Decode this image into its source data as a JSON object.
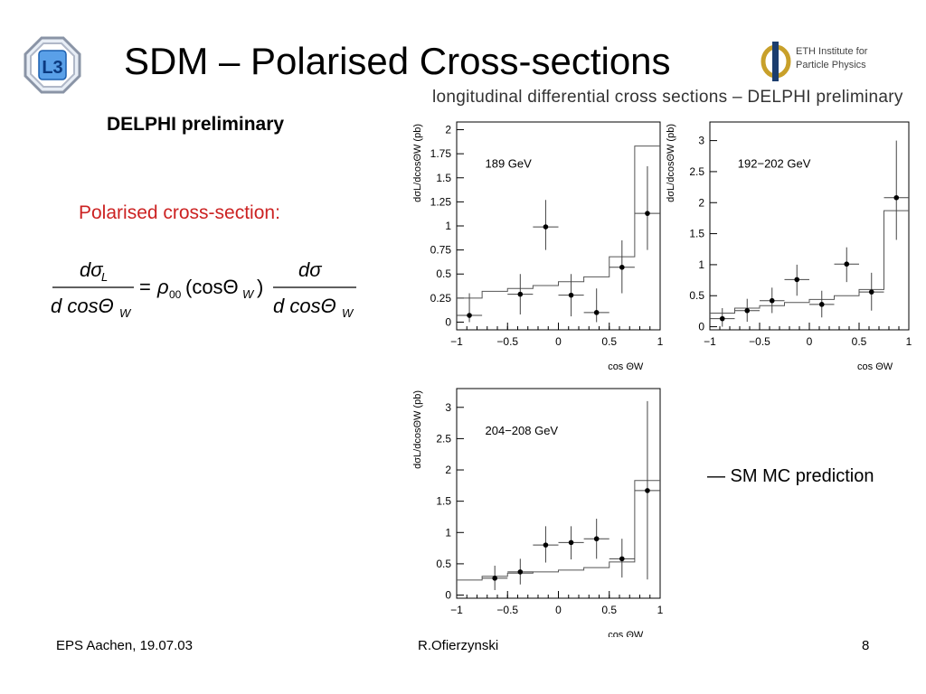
{
  "slide": {
    "title": "SDM – Polarised Cross-sections",
    "subtitle": "DELPHI preliminary",
    "polarised_label": "Polarised cross-section:",
    "plots_title": "longitudinal differential cross sections – DELPHI preliminary",
    "legend_text": "— SM MC prediction",
    "eth_text_line1": "ETH Institute for",
    "eth_text_line2": "Particle Physics",
    "l3_logo_text": "L3"
  },
  "equation": {
    "lhs_num": "dσ",
    "lhs_num_sub": "L",
    "lhs_den": "d cosΘ",
    "lhs_den_sub": "W",
    "equals": "=",
    "rho": "ρ",
    "rho_sub": "00",
    "arg": "(cosΘ",
    "arg_sub": "W",
    "arg_close": ")",
    "rhs_num": "dσ",
    "rhs_den": "d cosΘ",
    "rhs_den_sub": "W"
  },
  "footer": {
    "left": "EPS Aachen, 19.07.03",
    "center": "R.Ofierzynski",
    "right": "8"
  },
  "colors": {
    "title": "#000000",
    "polarised_label": "#cc2222",
    "axis": "#000000",
    "mc_line": "#555555"
  },
  "chart_data": [
    {
      "type": "scatter",
      "label": "189 GeV",
      "ylabel": "dσL/dcosΘW (pb)",
      "xlabel": "cos ΘW",
      "xlim": [
        -1,
        1
      ],
      "ylim": [
        -0.08,
        2.08
      ],
      "xticks": [
        -1,
        -0.5,
        0,
        0.5,
        1
      ],
      "xtick_labels": [
        "−1",
        "−0.5",
        "0",
        "0.5",
        "1"
      ],
      "yticks": [
        0,
        0.25,
        0.5,
        0.75,
        1,
        1.25,
        1.5,
        1.75,
        2
      ],
      "ytick_labels": [
        "0",
        "0.25",
        "0.5",
        "0.75",
        "1",
        "1.25",
        "1.5",
        "1.75",
        "2"
      ],
      "points": [
        {
          "x": -0.875,
          "y": 0.07,
          "ylo": 0.0,
          "yhi": 0.3
        },
        {
          "x": -0.375,
          "y": 0.29,
          "ylo": 0.08,
          "yhi": 0.5
        },
        {
          "x": -0.125,
          "y": 0.99,
          "ylo": 0.75,
          "yhi": 1.27
        },
        {
          "x": 0.125,
          "y": 0.28,
          "ylo": 0.06,
          "yhi": 0.5
        },
        {
          "x": 0.375,
          "y": 0.1,
          "ylo": 0.0,
          "yhi": 0.35
        },
        {
          "x": 0.625,
          "y": 0.57,
          "ylo": 0.3,
          "yhi": 0.85
        },
        {
          "x": 0.875,
          "y": 1.13,
          "ylo": 0.75,
          "yhi": 1.62
        }
      ],
      "mc_edges": [
        -1,
        -0.75,
        -0.5,
        -0.25,
        0,
        0.25,
        0.5,
        0.75,
        1
      ],
      "mc_values": [
        0.25,
        0.32,
        0.35,
        0.38,
        0.42,
        0.47,
        0.68,
        1.83
      ]
    },
    {
      "type": "scatter",
      "label": "192−202 GeV",
      "ylabel": "dσL/dcosΘW (pb)",
      "xlabel": "cos ΘW",
      "xlim": [
        -1,
        1
      ],
      "ylim": [
        -0.05,
        3.3
      ],
      "xticks": [
        -1,
        -0.5,
        0,
        0.5,
        1
      ],
      "xtick_labels": [
        "−1",
        "−0.5",
        "0",
        "0.5",
        "1"
      ],
      "yticks": [
        0,
        0.5,
        1,
        1.5,
        2,
        2.5,
        3
      ],
      "ytick_labels": [
        "0",
        "0.5",
        "1",
        "1.5",
        "2",
        "2.5",
        "3"
      ],
      "points": [
        {
          "x": -0.875,
          "y": 0.13,
          "ylo": 0.0,
          "yhi": 0.3
        },
        {
          "x": -0.625,
          "y": 0.26,
          "ylo": 0.08,
          "yhi": 0.45
        },
        {
          "x": -0.375,
          "y": 0.42,
          "ylo": 0.22,
          "yhi": 0.63
        },
        {
          "x": -0.125,
          "y": 0.76,
          "ylo": 0.5,
          "yhi": 1.0
        },
        {
          "x": 0.125,
          "y": 0.36,
          "ylo": 0.15,
          "yhi": 0.58
        },
        {
          "x": 0.375,
          "y": 1.01,
          "ylo": 0.72,
          "yhi": 1.28
        },
        {
          "x": 0.625,
          "y": 0.56,
          "ylo": 0.26,
          "yhi": 0.87
        },
        {
          "x": 0.875,
          "y": 2.08,
          "ylo": 1.4,
          "yhi": 3.0
        }
      ],
      "mc_edges": [
        -1,
        -0.75,
        -0.5,
        -0.25,
        0,
        0.25,
        0.5,
        0.75,
        1
      ],
      "mc_values": [
        0.22,
        0.3,
        0.34,
        0.39,
        0.44,
        0.5,
        0.6,
        1.87
      ]
    },
    {
      "type": "scatter",
      "label": "204−208 GeV",
      "ylabel": "dσL/dcosΘW (pb)",
      "xlabel": "cos ΘW",
      "xlim": [
        -1,
        1
      ],
      "ylim": [
        -0.05,
        3.3
      ],
      "xticks": [
        -1,
        -0.5,
        0,
        0.5,
        1
      ],
      "xtick_labels": [
        "−1",
        "−0.5",
        "0",
        "0.5",
        "1"
      ],
      "yticks": [
        0,
        0.5,
        1,
        1.5,
        2,
        2.5,
        3
      ],
      "ytick_labels": [
        "0",
        "0.5",
        "1",
        "1.5",
        "2",
        "2.5",
        "3"
      ],
      "points": [
        {
          "x": -0.625,
          "y": 0.27,
          "ylo": 0.08,
          "yhi": 0.47
        },
        {
          "x": -0.375,
          "y": 0.37,
          "ylo": 0.17,
          "yhi": 0.58
        },
        {
          "x": -0.125,
          "y": 0.8,
          "ylo": 0.52,
          "yhi": 1.1
        },
        {
          "x": 0.125,
          "y": 0.84,
          "ylo": 0.57,
          "yhi": 1.1
        },
        {
          "x": 0.375,
          "y": 0.9,
          "ylo": 0.58,
          "yhi": 1.22
        },
        {
          "x": 0.625,
          "y": 0.58,
          "ylo": 0.28,
          "yhi": 0.9
        },
        {
          "x": 0.875,
          "y": 1.67,
          "ylo": 0.25,
          "yhi": 3.1
        }
      ],
      "mc_edges": [
        -1,
        -0.75,
        -0.5,
        -0.25,
        0,
        0.25,
        0.5,
        0.75,
        1
      ],
      "mc_values": [
        0.24,
        0.3,
        0.35,
        0.37,
        0.4,
        0.44,
        0.53,
        1.83
      ]
    }
  ]
}
